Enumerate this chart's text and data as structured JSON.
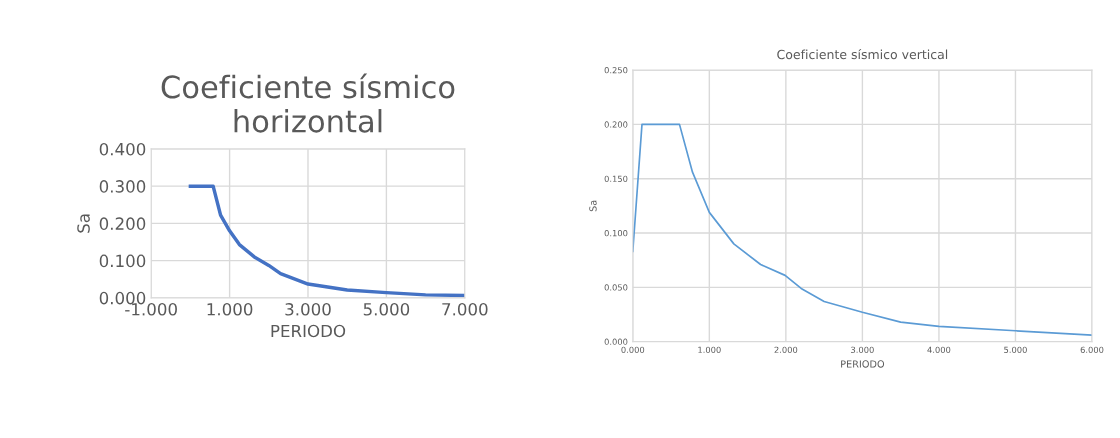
{
  "chart_data": [
    {
      "type": "line",
      "title": "Coeficiente sísmico\nhorizontal",
      "xlabel": "PERIODO",
      "ylabel": "Sa",
      "series": [
        {
          "color": "#4472c4",
          "x": [
            0,
            0.58,
            0.77,
            1.0,
            1.25,
            1.63,
            2.0,
            2.3,
            3.0,
            4.0,
            5.0,
            6.0,
            7.0
          ],
          "values": [
            0.3,
            0.3,
            0.222,
            0.18,
            0.143,
            0.11,
            0.087,
            0.065,
            0.037,
            0.021,
            0.014,
            0.008,
            0.006
          ]
        }
      ],
      "xlim": [
        -1,
        7
      ],
      "ylim": [
        0,
        0.4
      ],
      "xticks": [
        {
          "value": -1,
          "label": "-1.000"
        },
        {
          "value": 1,
          "label": "1.000"
        },
        {
          "value": 3,
          "label": "3.000"
        },
        {
          "value": 5,
          "label": "5.000"
        },
        {
          "value": 7,
          "label": "7.000"
        }
      ],
      "yticks": [
        {
          "value": 0,
          "label": "0.000"
        },
        {
          "value": 0.1,
          "label": "0.100"
        },
        {
          "value": 0.2,
          "label": "0.200"
        },
        {
          "value": 0.3,
          "label": "0.300"
        },
        {
          "value": 0.4,
          "label": "0.400"
        }
      ],
      "grid": true
    },
    {
      "type": "line",
      "title": "Coeficiente sísmico vertical",
      "xlabel": "PERIODO",
      "ylabel": "Sa",
      "series": [
        {
          "color": "#5b9bd5",
          "x": [
            0,
            0.12,
            0.61,
            0.78,
            1.0,
            1.32,
            1.67,
            1.99,
            2.2,
            2.5,
            3.0,
            3.5,
            4.0,
            5.0,
            6.0
          ],
          "values": [
            0.083,
            0.2,
            0.2,
            0.156,
            0.119,
            0.09,
            0.071,
            0.061,
            0.049,
            0.037,
            0.027,
            0.018,
            0.014,
            0.01,
            0.006
          ]
        }
      ],
      "xlim": [
        0,
        6
      ],
      "ylim": [
        0,
        0.25
      ],
      "xticks": [
        {
          "value": 0,
          "label": "0.000"
        },
        {
          "value": 1,
          "label": "1.000"
        },
        {
          "value": 2,
          "label": "2.000"
        },
        {
          "value": 3,
          "label": "3.000"
        },
        {
          "value": 4,
          "label": "4.000"
        },
        {
          "value": 5,
          "label": "5.000"
        },
        {
          "value": 6,
          "label": "6.000"
        }
      ],
      "yticks": [
        {
          "value": 0,
          "label": "0.000"
        },
        {
          "value": 0.05,
          "label": "0.050"
        },
        {
          "value": 0.1,
          "label": "0.100"
        },
        {
          "value": 0.15,
          "label": "0.150"
        },
        {
          "value": 0.2,
          "label": "0.200"
        },
        {
          "value": 0.25,
          "label": "0.250"
        }
      ],
      "grid": true
    }
  ]
}
